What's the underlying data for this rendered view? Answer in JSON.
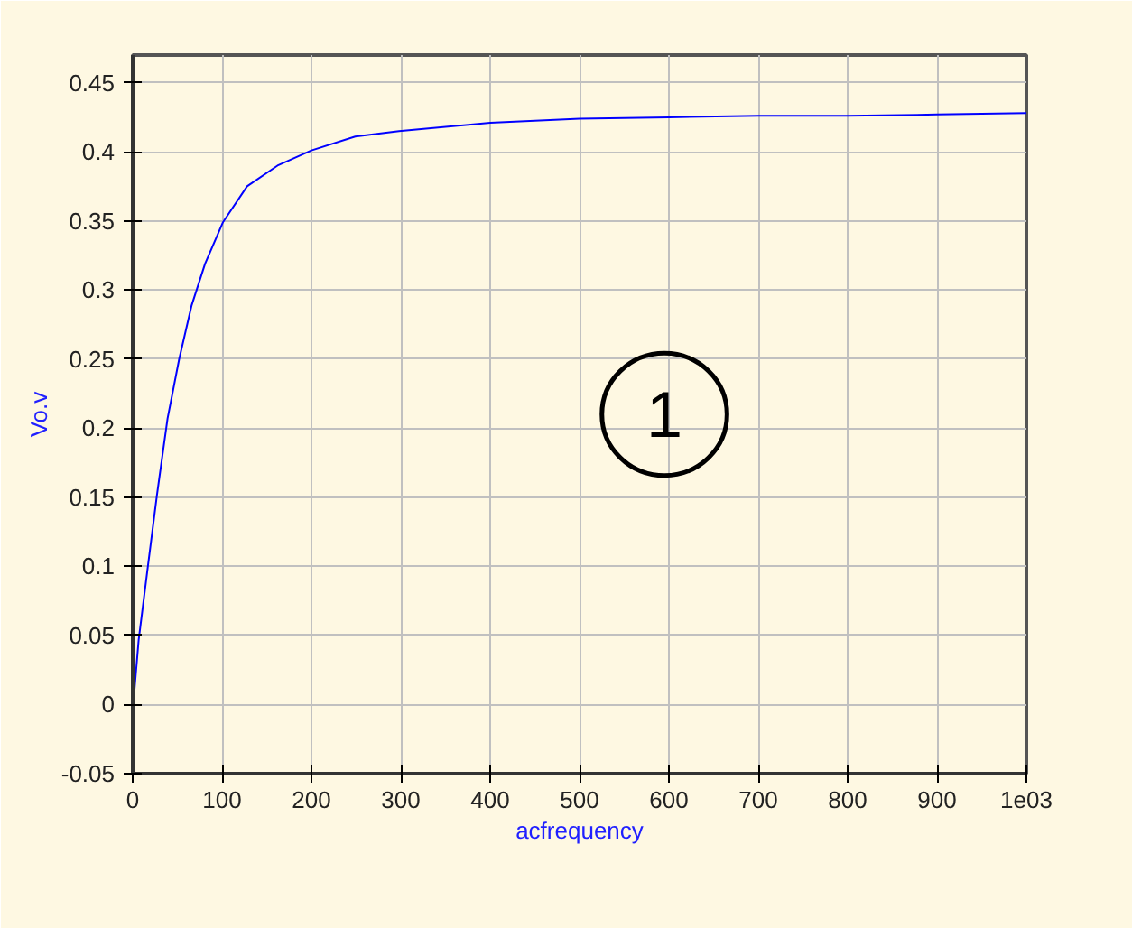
{
  "chart_data": {
    "type": "line",
    "xlabel": "acfrequency",
    "ylabel": "Vo.v",
    "x": [
      1,
      6.7,
      16.8,
      27,
      39,
      52,
      66,
      81,
      101,
      128,
      162,
      200,
      249,
      298,
      400,
      500,
      600,
      700,
      800,
      900,
      1000
    ],
    "series": [
      {
        "color": "#0000ff",
        "values": [
          0.003,
          0.047,
          0.099,
          0.151,
          0.207,
          0.25,
          0.289,
          0.319,
          0.349,
          0.375,
          0.39,
          0.401,
          0.411,
          0.415,
          0.421,
          0.424,
          0.425,
          0.426,
          0.426,
          0.427,
          0.428
        ]
      }
    ],
    "xlim": [
      0,
      1000
    ],
    "ylim": [
      -0.05,
      0.47
    ],
    "xticks": [
      0,
      100,
      200,
      300,
      400,
      500,
      600,
      700,
      800,
      900,
      {
        "value": 1000,
        "label": "1e03"
      }
    ],
    "yticks": [
      -0.05,
      0,
      0.05,
      0.1,
      0.15,
      0.2,
      0.25,
      0.3,
      0.35,
      0.4,
      0.45
    ],
    "grid": true,
    "marker": "none",
    "line_style": "solid",
    "annotations": [
      "1"
    ]
  }
}
